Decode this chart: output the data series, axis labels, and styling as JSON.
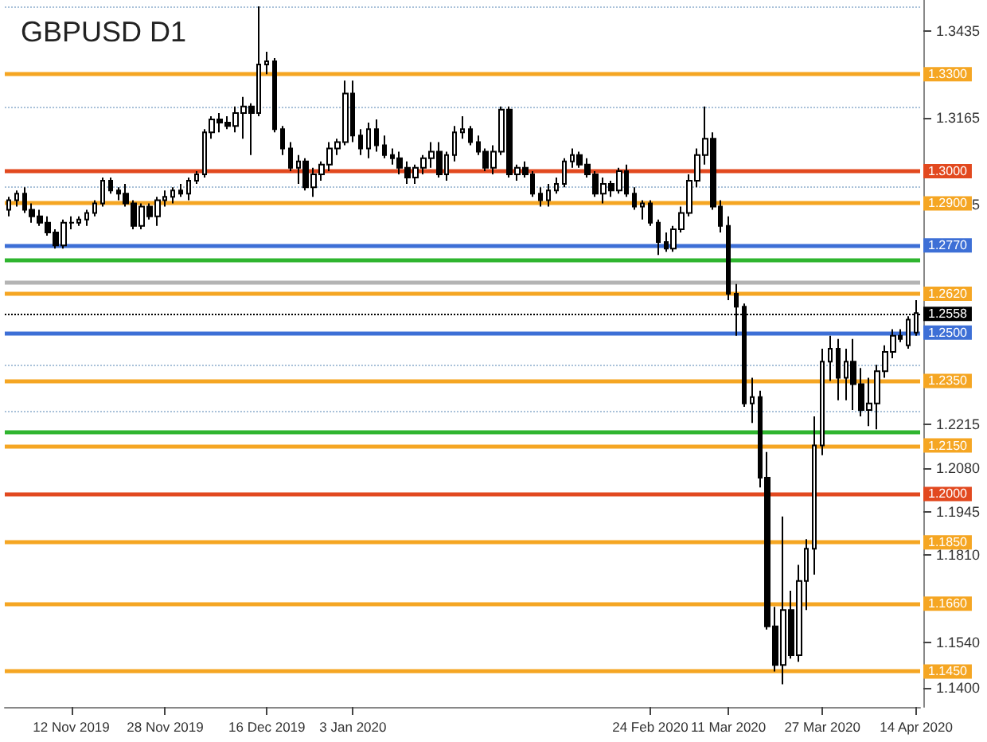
{
  "chart_data": {
    "type": "candlestick",
    "title": "GBPUSD D1",
    "categories": [
      null,
      null,
      null,
      null,
      null,
      null,
      null,
      null,
      "12 Nov 2019",
      null,
      null,
      null,
      null,
      null,
      null,
      null,
      null,
      null,
      null,
      null,
      "28 Nov 2019",
      null,
      null,
      null,
      null,
      null,
      null,
      null,
      null,
      null,
      null,
      null,
      null,
      "16 Dec 2019",
      null,
      null,
      null,
      null,
      null,
      null,
      null,
      null,
      null,
      null,
      "3 Jan 2020",
      null,
      null,
      null,
      null,
      null,
      null,
      null,
      null,
      null,
      null,
      null,
      null,
      null,
      null,
      null,
      null,
      null,
      null,
      null,
      null,
      null,
      null,
      null,
      null,
      null,
      null,
      null,
      null,
      null,
      null,
      null,
      null,
      null,
      null,
      null,
      null,
      null,
      "24 Feb 2020",
      null,
      null,
      null,
      null,
      null,
      null,
      null,
      null,
      null,
      "11 Mar 2020",
      null,
      null,
      null,
      null,
      null,
      null,
      null,
      null,
      null,
      null,
      null,
      "27 Mar 2020",
      null,
      null,
      null,
      null,
      null,
      null,
      null,
      null,
      null,
      null,
      null,
      "14 Apr 2020"
    ],
    "ohlc": [
      [
        1.288,
        1.292,
        1.286,
        1.291
      ],
      [
        1.291,
        1.294,
        1.289,
        1.293
      ],
      [
        1.293,
        1.295,
        1.287,
        1.288
      ],
      [
        1.288,
        1.29,
        1.284,
        1.286
      ],
      [
        1.286,
        1.288,
        1.283,
        1.284
      ],
      [
        1.284,
        1.286,
        1.28,
        1.281
      ],
      [
        1.281,
        1.282,
        1.276,
        1.277
      ],
      [
        1.277,
        1.285,
        1.276,
        1.284
      ],
      [
        1.284,
        1.286,
        1.282,
        1.284
      ],
      [
        1.284,
        1.286,
        1.283,
        1.285
      ],
      [
        1.285,
        1.288,
        1.283,
        1.287
      ],
      [
        1.287,
        1.291,
        1.286,
        1.29
      ],
      [
        1.29,
        1.298,
        1.289,
        1.297
      ],
      [
        1.297,
        1.298,
        1.293,
        1.294
      ],
      [
        1.294,
        1.295,
        1.291,
        1.293
      ],
      [
        1.293,
        1.296,
        1.289,
        1.29
      ],
      [
        1.29,
        1.291,
        1.282,
        1.283
      ],
      [
        1.283,
        1.29,
        1.282,
        1.289
      ],
      [
        1.289,
        1.29,
        1.285,
        1.286
      ],
      [
        1.286,
        1.292,
        1.283,
        1.291
      ],
      [
        1.291,
        1.294,
        1.289,
        1.292
      ],
      [
        1.292,
        1.295,
        1.29,
        1.294
      ],
      [
        1.294,
        1.296,
        1.292,
        1.293
      ],
      [
        1.293,
        1.298,
        1.291,
        1.297
      ],
      [
        1.297,
        1.3,
        1.296,
        1.299
      ],
      [
        1.299,
        1.313,
        1.298,
        1.312
      ],
      [
        1.312,
        1.317,
        1.31,
        1.316
      ],
      [
        1.316,
        1.318,
        1.312,
        1.315
      ],
      [
        1.315,
        1.317,
        1.313,
        1.314
      ],
      [
        1.314,
        1.32,
        1.312,
        1.318
      ],
      [
        1.318,
        1.323,
        1.31,
        1.32
      ],
      [
        1.32,
        1.321,
        1.305,
        1.318
      ],
      [
        1.318,
        1.351,
        1.317,
        1.333
      ],
      [
        1.333,
        1.337,
        1.33,
        1.334
      ],
      [
        1.334,
        1.335,
        1.312,
        1.313
      ],
      [
        1.313,
        1.314,
        1.305,
        1.307
      ],
      [
        1.307,
        1.309,
        1.3,
        1.301
      ],
      [
        1.301,
        1.305,
        1.296,
        1.303
      ],
      [
        1.303,
        1.304,
        1.294,
        1.295
      ],
      [
        1.295,
        1.301,
        1.292,
        1.299
      ],
      [
        1.299,
        1.303,
        1.297,
        1.302
      ],
      [
        1.302,
        1.309,
        1.3,
        1.307
      ],
      [
        1.307,
        1.31,
        1.305,
        1.309
      ],
      [
        1.309,
        1.328,
        1.308,
        1.324
      ],
      [
        1.324,
        1.328,
        1.309,
        1.311
      ],
      [
        1.311,
        1.313,
        1.305,
        1.307
      ],
      [
        1.307,
        1.315,
        1.304,
        1.313
      ],
      [
        1.313,
        1.316,
        1.306,
        1.308
      ],
      [
        1.308,
        1.311,
        1.304,
        1.305
      ],
      [
        1.305,
        1.307,
        1.302,
        1.304
      ],
      [
        1.304,
        1.306,
        1.299,
        1.301
      ],
      [
        1.301,
        1.303,
        1.296,
        1.298
      ],
      [
        1.298,
        1.302,
        1.296,
        1.301
      ],
      [
        1.301,
        1.305,
        1.299,
        1.304
      ],
      [
        1.304,
        1.309,
        1.301,
        1.306
      ],
      [
        1.306,
        1.309,
        1.298,
        1.299
      ],
      [
        1.299,
        1.306,
        1.297,
        1.305
      ],
      [
        1.305,
        1.314,
        1.303,
        1.312
      ],
      [
        1.312,
        1.317,
        1.31,
        1.313
      ],
      [
        1.313,
        1.314,
        1.308,
        1.309
      ],
      [
        1.309,
        1.311,
        1.305,
        1.306
      ],
      [
        1.306,
        1.307,
        1.3,
        1.301
      ],
      [
        1.301,
        1.308,
        1.299,
        1.306
      ],
      [
        1.306,
        1.32,
        1.305,
        1.319
      ],
      [
        1.319,
        1.32,
        1.298,
        1.299
      ],
      [
        1.299,
        1.302,
        1.297,
        1.301
      ],
      [
        1.301,
        1.303,
        1.298,
        1.299
      ],
      [
        1.299,
        1.3,
        1.292,
        1.293
      ],
      [
        1.293,
        1.295,
        1.289,
        1.291
      ],
      [
        1.291,
        1.296,
        1.289,
        1.294
      ],
      [
        1.294,
        1.298,
        1.293,
        1.296
      ],
      [
        1.296,
        1.304,
        1.295,
        1.303
      ],
      [
        1.303,
        1.307,
        1.301,
        1.305
      ],
      [
        1.305,
        1.306,
        1.301,
        1.302
      ],
      [
        1.302,
        1.304,
        1.298,
        1.299
      ],
      [
        1.299,
        1.3,
        1.292,
        1.293
      ],
      [
        1.293,
        1.298,
        1.29,
        1.296
      ],
      [
        1.296,
        1.297,
        1.292,
        1.294
      ],
      [
        1.294,
        1.301,
        1.293,
        1.3
      ],
      [
        1.3,
        1.302,
        1.292,
        1.293
      ],
      [
        1.293,
        1.295,
        1.288,
        1.289
      ],
      [
        1.289,
        1.291,
        1.285,
        1.29
      ],
      [
        1.29,
        1.291,
        1.283,
        1.284
      ],
      [
        1.284,
        1.285,
        1.274,
        1.278
      ],
      [
        1.278,
        1.281,
        1.275,
        1.276
      ],
      [
        1.276,
        1.283,
        1.275,
        1.282
      ],
      [
        1.282,
        1.289,
        1.281,
        1.287
      ],
      [
        1.287,
        1.299,
        1.286,
        1.297
      ],
      [
        1.297,
        1.307,
        1.295,
        1.305
      ],
      [
        1.305,
        1.32,
        1.302,
        1.31
      ],
      [
        1.31,
        1.312,
        1.288,
        1.289
      ],
      [
        1.289,
        1.291,
        1.281,
        1.283
      ],
      [
        1.283,
        1.286,
        1.26,
        1.262
      ],
      [
        1.262,
        1.265,
        1.249,
        1.258
      ],
      [
        1.258,
        1.259,
        1.227,
        1.228
      ],
      [
        1.228,
        1.236,
        1.222,
        1.23
      ],
      [
        1.23,
        1.232,
        1.202,
        1.205
      ],
      [
        1.205,
        1.213,
        1.158,
        1.159
      ],
      [
        1.159,
        1.165,
        1.145,
        1.147
      ],
      [
        1.147,
        1.193,
        1.141,
        1.164
      ],
      [
        1.164,
        1.17,
        1.149,
        1.15
      ],
      [
        1.15,
        1.178,
        1.148,
        1.173
      ],
      [
        1.173,
        1.186,
        1.164,
        1.183
      ],
      [
        1.183,
        1.224,
        1.175,
        1.215
      ],
      [
        1.215,
        1.245,
        1.212,
        1.241
      ],
      [
        1.241,
        1.249,
        1.235,
        1.245
      ],
      [
        1.245,
        1.248,
        1.229,
        1.236
      ],
      [
        1.236,
        1.245,
        1.229,
        1.241
      ],
      [
        1.241,
        1.248,
        1.226,
        1.234
      ],
      [
        1.234,
        1.239,
        1.224,
        1.226
      ],
      [
        1.226,
        1.236,
        1.221,
        1.228
      ],
      [
        1.228,
        1.24,
        1.22,
        1.238
      ],
      [
        1.238,
        1.246,
        1.236,
        1.244
      ],
      [
        1.244,
        1.251,
        1.242,
        1.249
      ],
      [
        1.249,
        1.251,
        1.247,
        1.248
      ],
      [
        1.246,
        1.255,
        1.245,
        1.254
      ],
      [
        1.25,
        1.26,
        1.249,
        1.256
      ]
    ],
    "ylim": [
      1.134,
      1.353
    ],
    "yticks": [
      1.3435,
      1.3165,
      1.2895,
      1.2215,
      {
        "value": 1.208,
        "label": "1.2080"
      },
      1.1945,
      {
        "value": 1.181,
        "label": "1.1810"
      },
      {
        "value": 1.154,
        "label": "1.1540"
      },
      {
        "value": 1.14,
        "label": "1.1400"
      }
    ],
    "grid": false,
    "ref_lines": [
      {
        "axis": "y",
        "value": 1.351,
        "label": null,
        "color": "#a9c1d9",
        "line_style": "dotted"
      },
      {
        "axis": "y",
        "value": 1.33,
        "label": "1.3300",
        "color": "#f5a623",
        "line_style": "solid"
      },
      {
        "axis": "y",
        "value": 1.32,
        "label": null,
        "color": "#a9c1d9",
        "line_style": "dotted"
      },
      {
        "axis": "y",
        "value": 1.3,
        "label": "1.3000",
        "color": "#e2491f",
        "line_style": "solid"
      },
      {
        "axis": "y",
        "value": 1.295,
        "label": null,
        "color": "#a9c1d9",
        "line_style": "dotted"
      },
      {
        "axis": "y",
        "value": 1.29,
        "label": "1.2900",
        "color": "#f5a623",
        "line_style": "solid"
      },
      {
        "axis": "y",
        "value": 1.277,
        "label": "1.2770",
        "color": "#3d6fd6",
        "line_style": "solid"
      },
      {
        "axis": "y",
        "value": 1.2725,
        "label": null,
        "color": "#2fb52f",
        "line_style": "solid"
      },
      {
        "axis": "y",
        "value": 1.2658,
        "label": null,
        "color": "#b4b4b4",
        "line_style": "solid"
      },
      {
        "axis": "y",
        "value": 1.262,
        "label": "1.2620",
        "color": "#f5a623",
        "line_style": "solid"
      },
      {
        "axis": "y",
        "value": 1.2558,
        "label": "1.2558",
        "color": "#000000",
        "line_style": "dotted"
      },
      {
        "axis": "y",
        "value": 1.25,
        "label": "1.2500",
        "color": "#3d6fd6",
        "line_style": "solid"
      },
      {
        "axis": "y",
        "value": 1.24,
        "label": null,
        "color": "#a9c1d9",
        "line_style": "dotted"
      },
      {
        "axis": "y",
        "value": 1.235,
        "label": "1.2350",
        "color": "#f5a623",
        "line_style": "solid"
      },
      {
        "axis": "y",
        "value": 1.2255,
        "label": null,
        "color": "#a9c1d9",
        "line_style": "dotted"
      },
      {
        "axis": "y",
        "value": 1.2194,
        "label": null,
        "color": "#2fb52f",
        "line_style": "solid"
      },
      {
        "axis": "y",
        "value": 1.215,
        "label": "1.2150",
        "color": "#f5a623",
        "line_style": "solid"
      },
      {
        "axis": "y",
        "value": 1.2,
        "label": "1.2000",
        "color": "#e2491f",
        "line_style": "solid"
      },
      {
        "axis": "y",
        "value": 1.185,
        "label": "1.1850",
        "color": "#f5a623",
        "line_style": "solid"
      },
      {
        "axis": "y",
        "value": 1.166,
        "label": "1.1660",
        "color": "#f5a623",
        "line_style": "solid"
      },
      {
        "axis": "y",
        "value": 1.145,
        "label": "1.1450",
        "color": "#f5a623",
        "line_style": "solid"
      }
    ]
  }
}
